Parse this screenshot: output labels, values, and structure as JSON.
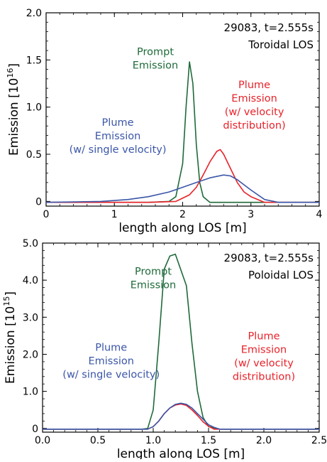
{
  "chart_data": [
    {
      "type": "line",
      "annotation_lines": [
        "29083, t=2.555s",
        "Toroidal LOS"
      ],
      "xlabel": "length along LOS [m]",
      "ylabel": "Emission [10",
      "ylabel_exponent": "16",
      "ylabel_suffix": "]",
      "xlim": [
        0,
        4
      ],
      "ylim": [
        -0.05,
        2.0
      ],
      "x_ticks": [
        0,
        1,
        2,
        3,
        4
      ],
      "x_tick_labels": [
        "0",
        "1",
        "2",
        "3",
        "4"
      ],
      "y_ticks": [
        0.0,
        0.5,
        1.0,
        1.5,
        2.0
      ],
      "y_tick_labels": [
        "0",
        "0.5",
        "1.0",
        "1.5",
        "2.0"
      ],
      "grid": false,
      "series": [
        {
          "name": "Prompt Emission",
          "label_lines": [
            "Prompt",
            "Emission"
          ],
          "label_anchor": [
            1.6,
            1.55
          ],
          "color": "#1f6a3a",
          "x": [
            0.0,
            1.5,
            1.8,
            1.9,
            2.0,
            2.05,
            2.1,
            2.15,
            2.2,
            2.25,
            2.3,
            2.4,
            3.5,
            4.0
          ],
          "y": [
            -0.01,
            -0.01,
            0.0,
            0.05,
            0.4,
            1.0,
            1.48,
            1.25,
            0.6,
            0.2,
            0.05,
            -0.01,
            -0.01,
            -0.01
          ]
        },
        {
          "name": "Plume Emission (w/ velocity distribution)",
          "label_lines": [
            "Plume",
            "Emission",
            "(w/ velocity",
            "distribution)"
          ],
          "label_anchor": [
            3.05,
            1.2
          ],
          "color": "#e8232a",
          "x": [
            0.0,
            1.5,
            1.9,
            2.1,
            2.2,
            2.3,
            2.4,
            2.5,
            2.55,
            2.6,
            2.7,
            2.8,
            2.9,
            3.0,
            3.1,
            3.2,
            4.0
          ],
          "y": [
            -0.01,
            -0.01,
            0.0,
            0.07,
            0.15,
            0.28,
            0.42,
            0.53,
            0.55,
            0.5,
            0.35,
            0.2,
            0.1,
            0.05,
            0.02,
            -0.01,
            -0.01
          ]
        },
        {
          "name": "Plume Emission (w/ single velocity)",
          "label_lines": [
            "Plume",
            "Emission",
            "(w/ single velocity)"
          ],
          "label_anchor": [
            1.05,
            0.8
          ],
          "color": "#3b56a8",
          "x": [
            0.0,
            0.8,
            1.2,
            1.5,
            1.8,
            2.0,
            2.2,
            2.4,
            2.6,
            2.7,
            2.8,
            3.0,
            3.2,
            3.4,
            4.0
          ],
          "y": [
            -0.01,
            0.0,
            0.02,
            0.05,
            0.1,
            0.15,
            0.2,
            0.25,
            0.28,
            0.27,
            0.23,
            0.12,
            0.02,
            -0.01,
            -0.01
          ]
        }
      ]
    },
    {
      "type": "line",
      "annotation_lines": [
        "29083, t=2.555s",
        "Poloidal LOS"
      ],
      "xlabel": "length along LOS [m]",
      "ylabel": "Emission [10",
      "ylabel_exponent": "15",
      "ylabel_suffix": "]",
      "xlim": [
        0,
        2.5
      ],
      "ylim": [
        -0.1,
        5.0
      ],
      "x_ticks": [
        0,
        0.5,
        1.0,
        1.5,
        2.0,
        2.5
      ],
      "x_tick_labels": [
        "0.0",
        "0.5",
        "1.0",
        "1.5",
        "2.0",
        "2.5"
      ],
      "y_ticks": [
        0.0,
        1.0,
        2.0,
        3.0,
        4.0,
        5.0
      ],
      "y_tick_labels": [
        "0",
        "1.0",
        "2.0",
        "3.0",
        "4.0",
        "5.0"
      ],
      "grid": false,
      "series": [
        {
          "name": "Prompt Emission",
          "label_lines": [
            "Prompt",
            "Emission"
          ],
          "label_anchor": [
            1.0,
            4.15
          ],
          "color": "#1f6a3a",
          "x": [
            0.0,
            0.9,
            0.95,
            1.0,
            1.05,
            1.1,
            1.15,
            1.2,
            1.3,
            1.35,
            1.4,
            1.45,
            1.5,
            1.6,
            2.5
          ],
          "y": [
            -0.02,
            -0.02,
            0.0,
            0.5,
            2.3,
            4.3,
            4.65,
            4.7,
            3.85,
            2.3,
            1.0,
            0.3,
            0.05,
            -0.02,
            -0.02
          ]
        },
        {
          "name": "Plume Emission (w/ velocity distribution)",
          "label_lines": [
            "Plume",
            "Emission",
            "(w/ velocity",
            "distribution)"
          ],
          "label_anchor": [
            2.0,
            2.4
          ],
          "color": "#e8232a",
          "x": [
            0.0,
            0.95,
            1.0,
            1.05,
            1.1,
            1.15,
            1.2,
            1.25,
            1.3,
            1.35,
            1.4,
            1.45,
            1.5,
            1.55,
            2.5
          ],
          "y": [
            -0.02,
            -0.02,
            0.05,
            0.2,
            0.4,
            0.55,
            0.63,
            0.66,
            0.62,
            0.5,
            0.35,
            0.18,
            0.06,
            -0.02,
            -0.02
          ]
        },
        {
          "name": "Plume Emission (w/ single velocity)",
          "label_lines": [
            "Plume",
            "Emission",
            "(w/ single velocity)"
          ],
          "label_anchor": [
            0.62,
            2.1
          ],
          "color": "#3b56a8",
          "x": [
            0.0,
            0.95,
            1.0,
            1.05,
            1.1,
            1.15,
            1.2,
            1.25,
            1.3,
            1.35,
            1.4,
            1.45,
            1.5,
            1.55,
            1.6,
            2.5
          ],
          "y": [
            -0.02,
            -0.02,
            0.05,
            0.2,
            0.4,
            0.55,
            0.65,
            0.68,
            0.65,
            0.55,
            0.4,
            0.25,
            0.1,
            0.03,
            -0.02,
            -0.02
          ]
        }
      ]
    }
  ]
}
